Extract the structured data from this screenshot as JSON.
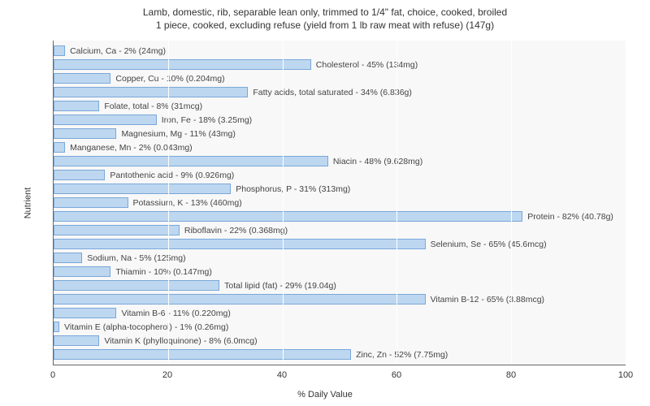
{
  "title_line1": "Lamb, domestic, rib, separable lean only, trimmed to 1/4\" fat, choice, cooked, broiled",
  "title_line2": "1 piece, cooked, excluding refuse (yield from 1 lb raw meat with refuse) (147g)",
  "x_axis_label": "% Daily Value",
  "y_axis_label": "Nutrient",
  "chart": {
    "type": "bar",
    "bar_fill": "#bdd7f0",
    "bar_border": "#7aa8d9",
    "plot_bg": "#f8f8f8",
    "grid_color": "#ffffff",
    "xlim": [
      0,
      100
    ],
    "xtick_step": 20,
    "label_fontsize": 10.5,
    "title_fontsize": 12,
    "axis_fontsize": 11
  },
  "xticks": [
    {
      "value": 0,
      "label": "0"
    },
    {
      "value": 20,
      "label": "20"
    },
    {
      "value": 40,
      "label": "40"
    },
    {
      "value": 60,
      "label": "60"
    },
    {
      "value": 80,
      "label": "80"
    },
    {
      "value": 100,
      "label": "100"
    }
  ],
  "nutrients": [
    {
      "label": "Calcium, Ca - 2% (24mg)",
      "value": 2
    },
    {
      "label": "Cholesterol - 45% (134mg)",
      "value": 45
    },
    {
      "label": "Copper, Cu - 10% (0.204mg)",
      "value": 10
    },
    {
      "label": "Fatty acids, total saturated - 34% (6.836g)",
      "value": 34
    },
    {
      "label": "Folate, total - 8% (31mcg)",
      "value": 8
    },
    {
      "label": "Iron, Fe - 18% (3.25mg)",
      "value": 18
    },
    {
      "label": "Magnesium, Mg - 11% (43mg)",
      "value": 11
    },
    {
      "label": "Manganese, Mn - 2% (0.043mg)",
      "value": 2
    },
    {
      "label": "Niacin - 48% (9.628mg)",
      "value": 48
    },
    {
      "label": "Pantothenic acid - 9% (0.926mg)",
      "value": 9
    },
    {
      "label": "Phosphorus, P - 31% (313mg)",
      "value": 31
    },
    {
      "label": "Potassium, K - 13% (460mg)",
      "value": 13
    },
    {
      "label": "Protein - 82% (40.78g)",
      "value": 82
    },
    {
      "label": "Riboflavin - 22% (0.368mg)",
      "value": 22
    },
    {
      "label": "Selenium, Se - 65% (45.6mcg)",
      "value": 65
    },
    {
      "label": "Sodium, Na - 5% (125mg)",
      "value": 5
    },
    {
      "label": "Thiamin - 10% (0.147mg)",
      "value": 10
    },
    {
      "label": "Total lipid (fat) - 29% (19.04g)",
      "value": 29
    },
    {
      "label": "Vitamin B-12 - 65% (3.88mcg)",
      "value": 65
    },
    {
      "label": "Vitamin B-6 - 11% (0.220mg)",
      "value": 11
    },
    {
      "label": "Vitamin E (alpha-tocopherol) - 1% (0.26mg)",
      "value": 1
    },
    {
      "label": "Vitamin K (phylloquinone) - 8% (6.0mcg)",
      "value": 8
    },
    {
      "label": "Zinc, Zn - 52% (7.75mg)",
      "value": 52
    }
  ]
}
